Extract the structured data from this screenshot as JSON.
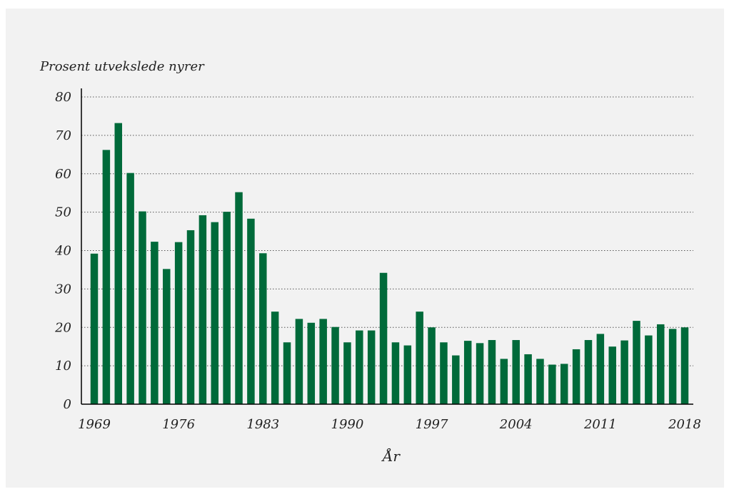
{
  "colors": {
    "background": "#f2f2f2",
    "bar": "#006a3a",
    "grid": "#555555",
    "text": "#222222"
  },
  "chart_data": {
    "type": "bar",
    "title": "",
    "ylabel": "Prosent utvekslede nyrer",
    "xlabel": "År",
    "ylim": [
      0,
      80
    ],
    "yticks": [
      0,
      10,
      20,
      30,
      40,
      50,
      60,
      70,
      80
    ],
    "xtick_labels": [
      "1969",
      "1976",
      "1983",
      "1990",
      "1997",
      "2004",
      "2011",
      "2018"
    ],
    "grid": "horizontal dotted",
    "legend": "none",
    "categories": [
      1969,
      1970,
      1971,
      1972,
      1973,
      1974,
      1975,
      1976,
      1977,
      1978,
      1979,
      1980,
      1981,
      1982,
      1983,
      1984,
      1985,
      1986,
      1987,
      1988,
      1989,
      1990,
      1991,
      1992,
      1993,
      1994,
      1995,
      1996,
      1997,
      1998,
      1999,
      2000,
      2001,
      2002,
      2003,
      2004,
      2005,
      2006,
      2007,
      2008,
      2009,
      2010,
      2011,
      2012,
      2013,
      2014,
      2015,
      2016,
      2017,
      2018
    ],
    "values": [
      39.2,
      66.2,
      73.2,
      60.2,
      50.2,
      42.3,
      35.2,
      42.2,
      45.3,
      49.2,
      47.4,
      50.1,
      55.2,
      48.3,
      39.3,
      24.1,
      16.1,
      22.2,
      21.2,
      22.2,
      20.1,
      16.1,
      19.2,
      19.2,
      34.2,
      16.1,
      15.3,
      24.1,
      20.0,
      16.1,
      12.7,
      16.5,
      15.9,
      16.7,
      11.8,
      16.7,
      13.0,
      11.8,
      10.3,
      10.5,
      14.3,
      16.7,
      18.3,
      15.0,
      16.6,
      21.7,
      17.9,
      20.8,
      19.6,
      20.0
    ]
  }
}
